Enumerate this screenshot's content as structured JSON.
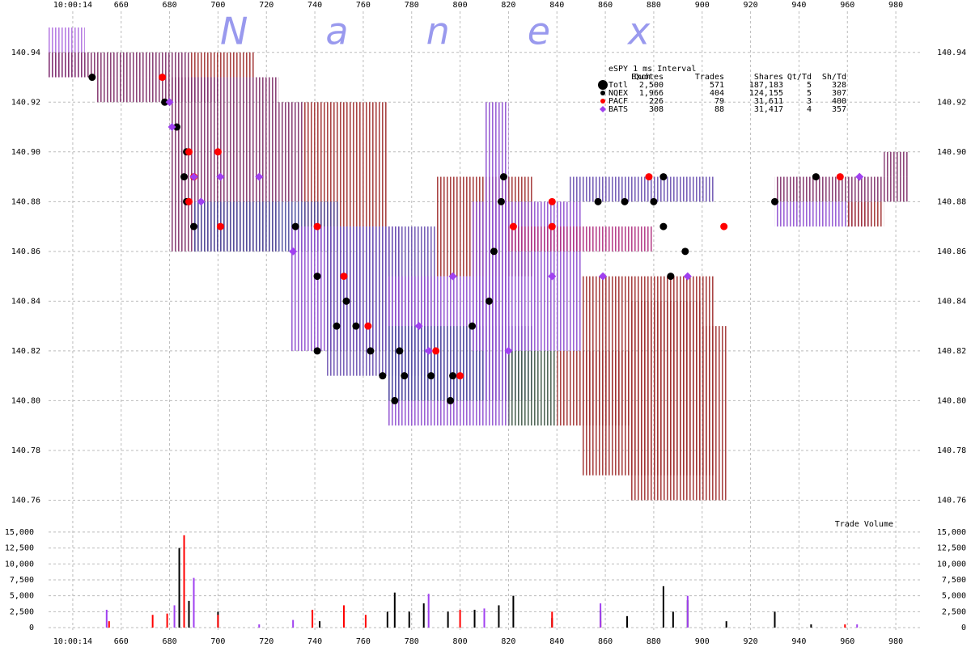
{
  "chart_data": [
    {
      "type": "quote-trade",
      "title": "Nanex",
      "xlim": [
        630,
        991
      ],
      "ylim": [
        140.753,
        140.95
      ],
      "xticks": [
        {
          "value": 640,
          "label": "10:00:14"
        },
        660,
        680,
        700,
        720,
        740,
        760,
        780,
        800,
        820,
        840,
        860,
        880,
        900,
        920,
        940,
        960,
        980
      ],
      "yticks": [
        {
          "value": 140.76,
          "label": "140.76"
        },
        {
          "value": 140.78,
          "label": "140.78"
        },
        {
          "value": 140.8,
          "label": "140.80"
        },
        {
          "value": 140.82,
          "label": "140.82"
        },
        {
          "value": 140.84,
          "label": "140.84"
        },
        {
          "value": 140.86,
          "label": "140.86"
        },
        {
          "value": 140.88,
          "label": "140.88"
        },
        {
          "value": 140.9,
          "label": "140.90"
        },
        {
          "value": 140.92,
          "label": "140.92"
        },
        {
          "value": 140.94,
          "label": "140.94"
        }
      ],
      "grid": true,
      "quote_bands": [
        {
          "x": [
            630,
            645
          ],
          "range": [
            140.93,
            140.95
          ],
          "color": "#b070e0"
        },
        {
          "x": [
            630,
            688
          ],
          "range": [
            140.93,
            140.94
          ],
          "color": "#80306a"
        },
        {
          "x": [
            650,
            700
          ],
          "range": [
            140.92,
            140.93
          ],
          "color": "#80306a"
        },
        {
          "x": [
            688,
            715
          ],
          "range": [
            140.93,
            140.94
          ],
          "color": "#a03030"
        },
        {
          "x": [
            680,
            725
          ],
          "range": [
            140.86,
            140.93
          ],
          "color": "#80306a"
        },
        {
          "x": [
            725,
            735
          ],
          "range": [
            140.88,
            140.92
          ],
          "color": "#80306a"
        },
        {
          "x": [
            735,
            770
          ],
          "range": [
            140.87,
            140.92
          ],
          "color": "#a03030"
        },
        {
          "x": [
            690,
            750
          ],
          "range": [
            140.86,
            140.88
          ],
          "color": "#5050a0"
        },
        {
          "x": [
            730,
            775
          ],
          "range": [
            140.82,
            140.87
          ],
          "color": "#9050d0"
        },
        {
          "x": [
            745,
            790
          ],
          "range": [
            140.81,
            140.87
          ],
          "color": "#6a50b0"
        },
        {
          "x": [
            770,
            820
          ],
          "range": [
            140.79,
            140.85
          ],
          "color": "#9050d0"
        },
        {
          "x": [
            770,
            830
          ],
          "range": [
            140.8,
            140.83
          ],
          "color": "#5050a0"
        },
        {
          "x": [
            790,
            830
          ],
          "range": [
            140.85,
            140.89
          ],
          "color": "#a03030"
        },
        {
          "x": [
            805,
            850
          ],
          "range": [
            140.82,
            140.88
          ],
          "color": "#9050d0"
        },
        {
          "x": [
            810,
            820
          ],
          "range": [
            140.8,
            140.92
          ],
          "color": "#9050d0"
        },
        {
          "x": [
            820,
            880
          ],
          "range": [
            140.86,
            140.87
          ],
          "color": "#b03080"
        },
        {
          "x": [
            845,
            905
          ],
          "range": [
            140.88,
            140.89
          ],
          "color": "#6a50b0"
        },
        {
          "x": [
            850,
            905
          ],
          "range": [
            140.77,
            140.85
          ],
          "color": "#a03030"
        },
        {
          "x": [
            870,
            900
          ],
          "range": [
            140.76,
            140.84
          ],
          "color": "#a03030"
        },
        {
          "x": [
            900,
            910
          ],
          "range": [
            140.76,
            140.83
          ],
          "color": "#a03030"
        },
        {
          "x": [
            820,
            840
          ],
          "range": [
            140.79,
            140.82
          ],
          "color": "#405848"
        },
        {
          "x": [
            840,
            870
          ],
          "range": [
            140.79,
            140.82
          ],
          "color": "#a03030"
        },
        {
          "x": [
            930,
            985
          ],
          "range": [
            140.88,
            140.89
          ],
          "color": "#80306a"
        },
        {
          "x": [
            975,
            985
          ],
          "range": [
            140.89,
            140.9
          ],
          "color": "#80306a"
        },
        {
          "x": [
            930,
            970
          ],
          "range": [
            140.87,
            140.88
          ],
          "color": "#9050d0"
        },
        {
          "x": [
            960,
            975
          ],
          "range": [
            140.87,
            140.88
          ],
          "color": "#a03030"
        }
      ],
      "stats_title": "eSPY 1 ms Interval",
      "stats_columns": [
        "Exch",
        "Quotes",
        "Trades",
        "Shares",
        "Qt/Td",
        "Sh/Td"
      ],
      "stats_total": {
        "name": "Totl",
        "cells": [
          "2,500",
          "571",
          "187,183",
          "5",
          "328"
        ]
      },
      "series": [
        {
          "name": "NQEX",
          "color": "#000000",
          "marker": "circle",
          "stats": [
            "1,966",
            "404",
            "124,155",
            "5",
            "307"
          ],
          "x": [
            648,
            678,
            683,
            687,
            686,
            687,
            690,
            732,
            741,
            753,
            749,
            757,
            741,
            763,
            775,
            768,
            777,
            788,
            797,
            773,
            796,
            805,
            812,
            814,
            817,
            818,
            857,
            868,
            884,
            884,
            893,
            880,
            887,
            930,
            947
          ],
          "values": [
            140.93,
            140.92,
            140.91,
            140.9,
            140.89,
            140.88,
            140.87,
            140.87,
            140.85,
            140.84,
            140.83,
            140.83,
            140.82,
            140.82,
            140.82,
            140.81,
            140.81,
            140.81,
            140.81,
            140.8,
            140.8,
            140.83,
            140.84,
            140.86,
            140.88,
            140.89,
            140.88,
            140.88,
            140.89,
            140.87,
            140.86,
            140.88,
            140.85,
            140.88,
            140.89
          ]
        },
        {
          "name": "PACF",
          "color": "#ff0000",
          "marker": "circle",
          "stats": [
            "226",
            "79",
            "31,611",
            "3",
            "400"
          ],
          "x": [
            677,
            688,
            690,
            688,
            700,
            701,
            741,
            752,
            762,
            790,
            800,
            822,
            838,
            838,
            878,
            909,
            957
          ],
          "values": [
            140.93,
            140.9,
            140.89,
            140.88,
            140.9,
            140.87,
            140.87,
            140.85,
            140.83,
            140.82,
            140.81,
            140.87,
            140.87,
            140.88,
            140.89,
            140.87,
            140.89
          ]
        },
        {
          "name": "BATS",
          "color": "#a040f0",
          "marker": "diamond",
          "stats": [
            "308",
            "88",
            "31,417",
            "4",
            "357"
          ],
          "x": [
            680,
            681,
            690,
            693,
            701,
            717,
            731,
            783,
            787,
            797,
            820,
            838,
            859,
            894,
            965
          ],
          "values": [
            140.92,
            140.91,
            140.89,
            140.88,
            140.89,
            140.89,
            140.86,
            140.83,
            140.82,
            140.85,
            140.82,
            140.85,
            140.85,
            140.85,
            140.89
          ]
        }
      ]
    },
    {
      "type": "volume",
      "annotation": "Trade Volume",
      "xlim": [
        630,
        991
      ],
      "ylim": [
        0,
        16000
      ],
      "yticks": [
        0,
        {
          "value": 2500,
          "label": "2,500"
        },
        {
          "value": 5000,
          "label": "5,000"
        },
        {
          "value": 7500,
          "label": "7,500"
        },
        {
          "value": 10000,
          "label": "10,000"
        },
        {
          "value": 12500,
          "label": "12,500"
        },
        {
          "value": 15000,
          "label": "15,000"
        }
      ],
      "series": [
        {
          "color": "#000000",
          "x": [
            684,
            688,
            700,
            742,
            770,
            773,
            779,
            785,
            795,
            806,
            816,
            822,
            838,
            858,
            869,
            884,
            888,
            894,
            910,
            930,
            945
          ],
          "values": [
            12500,
            4200,
            2500,
            1000,
            2500,
            5500,
            2500,
            3800,
            2500,
            2800,
            3500,
            5000,
            1500,
            2700,
            1800,
            6500,
            2500,
            4300,
            1000,
            2500,
            500
          ]
        },
        {
          "color": "#ff0000",
          "x": [
            655,
            673,
            679,
            686,
            700,
            739,
            752,
            761,
            800,
            838,
            858,
            959
          ],
          "values": [
            1000,
            2000,
            2200,
            14500,
            2000,
            2800,
            3500,
            2000,
            2800,
            2500,
            1000,
            500
          ]
        },
        {
          "color": "#a040f0",
          "x": [
            654,
            682,
            690,
            717,
            731,
            787,
            810,
            858,
            894,
            964
          ],
          "values": [
            2800,
            3500,
            7800,
            500,
            1200,
            5300,
            3000,
            3800,
            5000,
            500
          ]
        }
      ]
    }
  ]
}
